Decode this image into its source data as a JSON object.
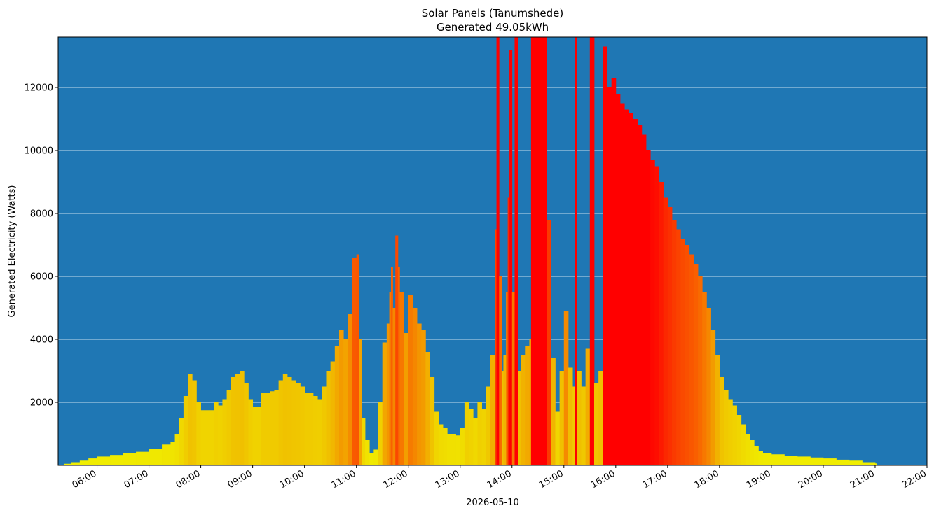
{
  "chart_data": {
    "type": "bar",
    "title": "Solar Panels (Tanumshede)",
    "subtitle": "Generated 49.05kWh",
    "xlabel": "2026-05-10",
    "ylabel": "Generated Electricity (Watts)",
    "x_unit": "time of day (HH:MM)",
    "xlim": [
      "05:15",
      "22:00"
    ],
    "ylim": [
      0,
      13600
    ],
    "x_ticks": [
      "06:00",
      "07:00",
      "08:00",
      "09:00",
      "10:00",
      "11:00",
      "12:00",
      "13:00",
      "14:00",
      "15:00",
      "16:00",
      "17:00",
      "18:00",
      "19:00",
      "20:00",
      "21:00",
      "22:00"
    ],
    "y_ticks": [
      2000,
      4000,
      6000,
      8000,
      10000,
      12000
    ],
    "grid": "horizontal",
    "colors": {
      "background": "#1f77b4",
      "grid": "#ffffff",
      "low": "#f0f000",
      "mid": "#f0c000",
      "high": "#f86a00",
      "max": "#ff0000"
    },
    "color_scale": {
      "low_watts": 0,
      "max_watts": 10000
    },
    "points": [
      [
        "05:22",
        50
      ],
      [
        "05:30",
        100
      ],
      [
        "05:40",
        150
      ],
      [
        "05:50",
        220
      ],
      [
        "06:00",
        280
      ],
      [
        "06:15",
        330
      ],
      [
        "06:30",
        380
      ],
      [
        "06:45",
        430
      ],
      [
        "07:00",
        520
      ],
      [
        "07:15",
        660
      ],
      [
        "07:25",
        740
      ],
      [
        "07:30",
        1000
      ],
      [
        "07:35",
        1500
      ],
      [
        "07:40",
        2200
      ],
      [
        "07:45",
        2900
      ],
      [
        "07:50",
        2700
      ],
      [
        "07:55",
        2000
      ],
      [
        "08:00",
        1750
      ],
      [
        "08:10",
        1750
      ],
      [
        "08:15",
        2000
      ],
      [
        "08:20",
        1900
      ],
      [
        "08:25",
        2100
      ],
      [
        "08:30",
        2400
      ],
      [
        "08:35",
        2800
      ],
      [
        "08:40",
        2900
      ],
      [
        "08:45",
        3000
      ],
      [
        "08:50",
        2600
      ],
      [
        "08:55",
        2100
      ],
      [
        "09:00",
        1850
      ],
      [
        "09:10",
        2300
      ],
      [
        "09:20",
        2350
      ],
      [
        "09:25",
        2400
      ],
      [
        "09:30",
        2700
      ],
      [
        "09:35",
        2900
      ],
      [
        "09:40",
        2800
      ],
      [
        "09:45",
        2700
      ],
      [
        "09:50",
        2600
      ],
      [
        "09:55",
        2500
      ],
      [
        "10:00",
        2300
      ],
      [
        "10:10",
        2200
      ],
      [
        "10:15",
        2100
      ],
      [
        "10:20",
        2500
      ],
      [
        "10:25",
        3000
      ],
      [
        "10:30",
        3300
      ],
      [
        "10:35",
        3800
      ],
      [
        "10:40",
        4300
      ],
      [
        "10:45",
        4000
      ],
      [
        "10:50",
        4800
      ],
      [
        "10:55",
        6600
      ],
      [
        "11:00",
        6700
      ],
      [
        "11:03",
        4000
      ],
      [
        "11:06",
        1500
      ],
      [
        "11:10",
        800
      ],
      [
        "11:15",
        400
      ],
      [
        "11:20",
        500
      ],
      [
        "11:25",
        2000
      ],
      [
        "11:30",
        3900
      ],
      [
        "11:35",
        4500
      ],
      [
        "11:38",
        5500
      ],
      [
        "11:40",
        6300
      ],
      [
        "11:42",
        5000
      ],
      [
        "11:45",
        7300
      ],
      [
        "11:48",
        6300
      ],
      [
        "11:50",
        5500
      ],
      [
        "11:55",
        4200
      ],
      [
        "12:00",
        5400
      ],
      [
        "12:05",
        5000
      ],
      [
        "12:10",
        4500
      ],
      [
        "12:15",
        4300
      ],
      [
        "12:20",
        3600
      ],
      [
        "12:25",
        2800
      ],
      [
        "12:30",
        1700
      ],
      [
        "12:35",
        1300
      ],
      [
        "12:40",
        1200
      ],
      [
        "12:45",
        1000
      ],
      [
        "12:55",
        950
      ],
      [
        "13:00",
        1200
      ],
      [
        "13:05",
        2000
      ],
      [
        "13:10",
        1800
      ],
      [
        "13:15",
        1500
      ],
      [
        "13:20",
        2000
      ],
      [
        "13:25",
        1800
      ],
      [
        "13:30",
        2500
      ],
      [
        "13:35",
        3500
      ],
      [
        "13:40",
        7500
      ],
      [
        "13:42",
        13600
      ],
      [
        "13:45",
        6000
      ],
      [
        "13:48",
        3000
      ],
      [
        "13:50",
        3500
      ],
      [
        "13:53",
        5500
      ],
      [
        "13:55",
        8500
      ],
      [
        "13:57",
        13200
      ],
      [
        "14:00",
        5500
      ],
      [
        "14:03",
        13600
      ],
      [
        "14:05",
        13600
      ],
      [
        "14:07",
        3000
      ],
      [
        "14:10",
        3500
      ],
      [
        "14:15",
        3800
      ],
      [
        "14:20",
        4000
      ],
      [
        "14:22",
        13600
      ],
      [
        "14:25",
        13600
      ],
      [
        "14:30",
        13600
      ],
      [
        "14:35",
        13600
      ],
      [
        "14:40",
        7800
      ],
      [
        "14:45",
        3400
      ],
      [
        "14:50",
        1700
      ],
      [
        "14:55",
        3000
      ],
      [
        "15:00",
        4900
      ],
      [
        "15:05",
        3100
      ],
      [
        "15:10",
        2500
      ],
      [
        "15:13",
        13600
      ],
      [
        "15:15",
        3000
      ],
      [
        "15:20",
        2500
      ],
      [
        "15:25",
        3700
      ],
      [
        "15:30",
        13600
      ],
      [
        "15:33",
        13600
      ],
      [
        "15:35",
        2600
      ],
      [
        "15:40",
        3000
      ],
      [
        "15:45",
        13300
      ],
      [
        "15:50",
        12000
      ],
      [
        "15:55",
        12300
      ],
      [
        "16:00",
        11800
      ],
      [
        "16:05",
        11500
      ],
      [
        "16:10",
        11300
      ],
      [
        "16:15",
        11200
      ],
      [
        "16:20",
        11000
      ],
      [
        "16:25",
        10800
      ],
      [
        "16:30",
        10500
      ],
      [
        "16:35",
        10000
      ],
      [
        "16:40",
        9700
      ],
      [
        "16:45",
        9500
      ],
      [
        "16:50",
        9000
      ],
      [
        "16:55",
        8500
      ],
      [
        "17:00",
        8200
      ],
      [
        "17:05",
        7800
      ],
      [
        "17:10",
        7500
      ],
      [
        "17:15",
        7200
      ],
      [
        "17:20",
        7000
      ],
      [
        "17:25",
        6700
      ],
      [
        "17:30",
        6400
      ],
      [
        "17:35",
        6000
      ],
      [
        "17:40",
        5500
      ],
      [
        "17:45",
        5000
      ],
      [
        "17:50",
        4300
      ],
      [
        "17:55",
        3500
      ],
      [
        "18:00",
        2800
      ],
      [
        "18:05",
        2400
      ],
      [
        "18:10",
        2100
      ],
      [
        "18:15",
        1900
      ],
      [
        "18:20",
        1600
      ],
      [
        "18:25",
        1300
      ],
      [
        "18:30",
        1000
      ],
      [
        "18:35",
        800
      ],
      [
        "18:40",
        600
      ],
      [
        "18:45",
        450
      ],
      [
        "18:50",
        400
      ],
      [
        "19:00",
        350
      ],
      [
        "19:15",
        300
      ],
      [
        "19:30",
        280
      ],
      [
        "19:45",
        250
      ],
      [
        "20:00",
        220
      ],
      [
        "20:15",
        180
      ],
      [
        "20:30",
        150
      ],
      [
        "20:45",
        100
      ],
      [
        "21:00",
        60
      ]
    ]
  }
}
